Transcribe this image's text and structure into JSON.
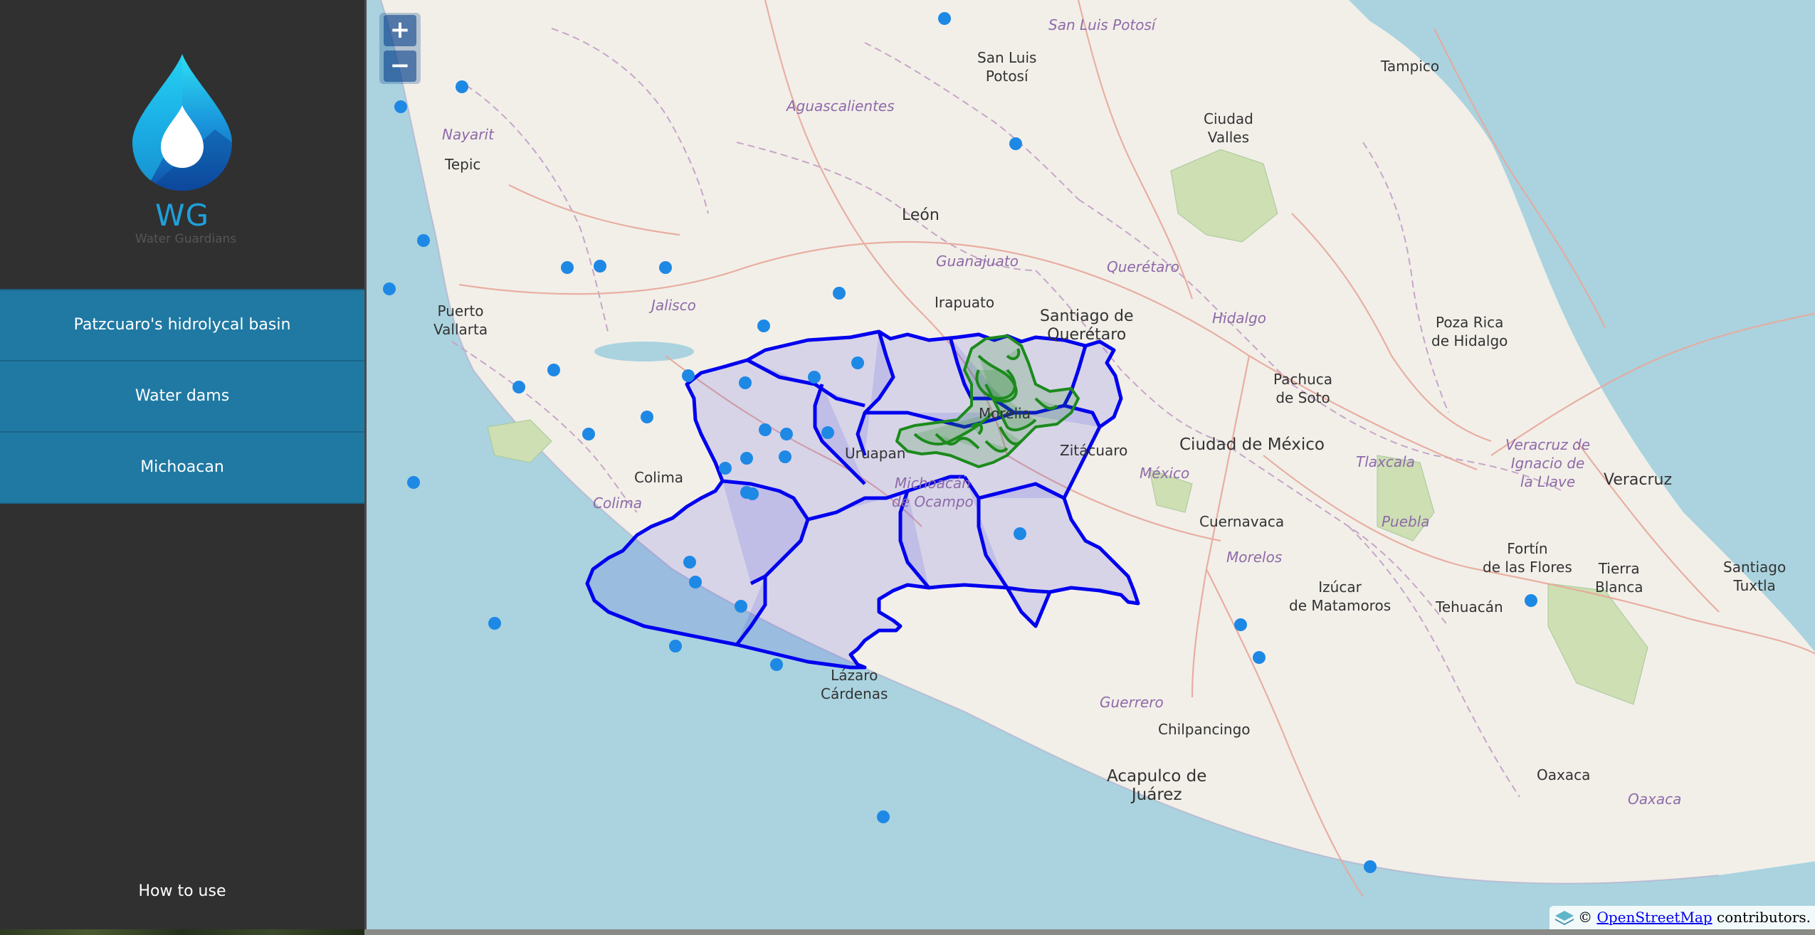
{
  "app": {
    "logo_short": "WG",
    "logo_full": "Water Guardians",
    "brand_color": "#1fa0db"
  },
  "menu": {
    "items": [
      {
        "label": "Patzcuaro's hidrolycal basin"
      },
      {
        "label": "Water dams"
      },
      {
        "label": "Michoacan"
      }
    ],
    "help_label": "How to use",
    "item_color": "#1f79a3"
  },
  "map": {
    "zoom_in": "+",
    "zoom_out": "−",
    "attribution_prefix": "©",
    "attribution_link": "OpenStreetMap",
    "attribution_suffix": " contributors.",
    "layer_colors": {
      "municipalities": "#0000ff",
      "basin": "#1c8a1c",
      "dams": "#1e88e5"
    },
    "labels": {
      "san_luis_potosi": "San Luis Potosí",
      "sl_potosi_city": "San Luis\nPotosí",
      "tampico": "Tampico",
      "aguascalientes": "Aguascalientes",
      "nayarit": "Nayarit",
      "tepic": "Tepic",
      "ciudad_valles": "Ciudad\nValles",
      "leon": "León",
      "guanajuato": "Guanajuato",
      "queretaro_state": "Querétaro",
      "irapuato": "Irapuato",
      "jalisco": "Jalisco",
      "puerto_vallarta": "Puerto\nVallarta",
      "santiago_queretaro": "Santiago de\nQuerétaro",
      "hidalgo": "Hidalgo",
      "poza_rica": "Poza Rica\nde Hidalgo",
      "pachuca": "Pachuca\nde Soto",
      "morelia": "Morelia",
      "uruapan": "Uruapan",
      "zitacuaro": "Zitácuaro",
      "ciudad_mexico": "Ciudad de México",
      "mexico": "México",
      "tlaxcala": "Tlaxcala",
      "veracruz_state": "Veracruz de\nIgnacio de\nla Llave",
      "veracruz": "Veracruz",
      "michoacan": "Michoacán\nde Ocampo",
      "colima_city": "Colima",
      "colima_state": "Colima",
      "cuernavaca": "Cuernavaca",
      "puebla": "Puebla",
      "fortin": "Fortín\nde las Flores",
      "tierra_blanca": "Tierra\nBlanca",
      "santiago_tuxtla": "Santiago\nTuxtla",
      "morelos": "Morelos",
      "izucar": "Izúcar\nde Matamoros",
      "tehuacan": "Tehuacán",
      "lazaro": "Lázaro\nCárdenas",
      "guerrero": "Guerrero",
      "chilpancingo": "Chilpancingo",
      "acapulco": "Acapulco de\nJuárez",
      "oaxaca_city": "Oaxaca",
      "oaxaca_state": "Oaxaca"
    }
  }
}
